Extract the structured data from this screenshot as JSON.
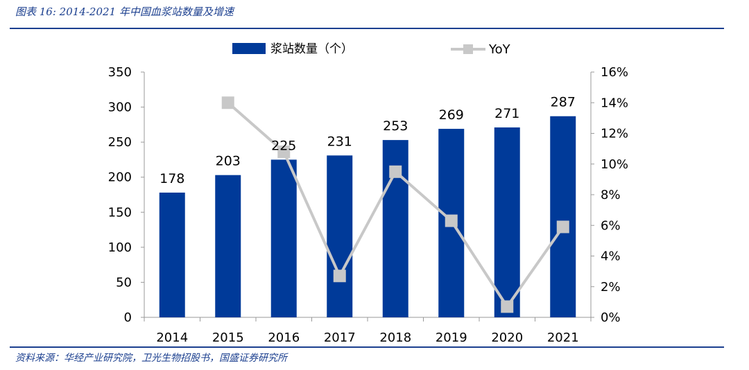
{
  "header": {
    "title": "图表 16:  2014-2021 年中国血浆站数量及增速"
  },
  "footer": {
    "source": "资料来源：华经产业研究院，卫光生物招股书，国盛证券研究所"
  },
  "chart_data": {
    "type": "bar",
    "categories": [
      "2014",
      "2015",
      "2016",
      "2017",
      "2018",
      "2019",
      "2020",
      "2021"
    ],
    "series": [
      {
        "name": "浆站数量（个）",
        "type": "bar",
        "axis": "left",
        "color": "#003a99",
        "values": [
          178,
          203,
          225,
          231,
          253,
          269,
          271,
          287
        ]
      },
      {
        "name": "YoY",
        "type": "line",
        "axis": "right",
        "color": "#c8c8c8",
        "values": [
          null,
          14.0,
          10.8,
          2.7,
          9.5,
          6.3,
          0.7,
          5.9
        ]
      }
    ],
    "left_axis": {
      "ylim": [
        0,
        350
      ],
      "ticks": [
        "0",
        "50",
        "100",
        "150",
        "200",
        "250",
        "300",
        "350"
      ]
    },
    "right_axis": {
      "ylim": [
        0,
        16
      ],
      "ticks": [
        "0%",
        "2%",
        "4%",
        "6%",
        "8%",
        "10%",
        "12%",
        "14%",
        "16%"
      ]
    },
    "data_labels": [
      "178",
      "203",
      "225",
      "231",
      "253",
      "269",
      "271",
      "287"
    ],
    "legend_position": "top"
  }
}
